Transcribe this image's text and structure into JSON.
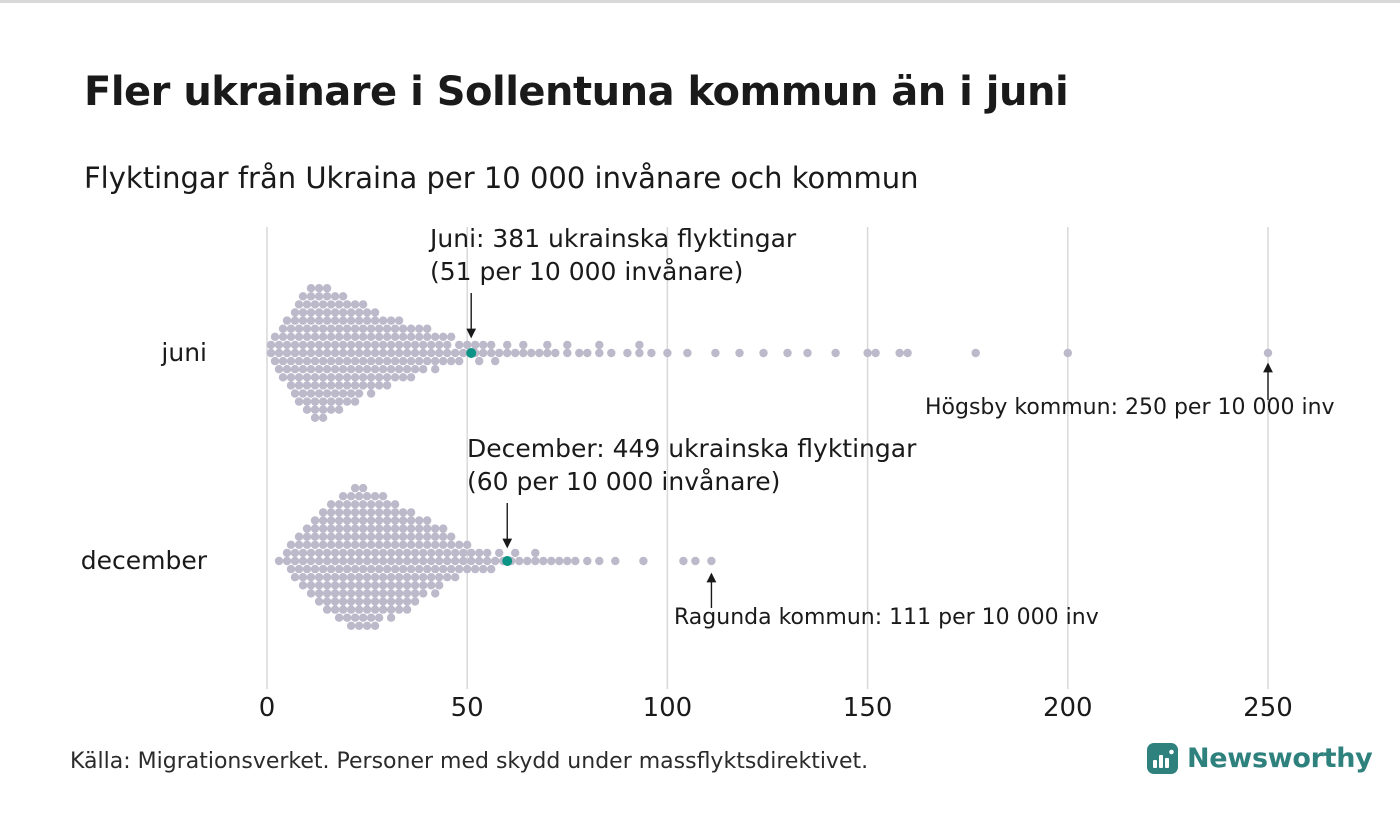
{
  "header": {
    "title": "Fler ukrainare i Sollentuna kommun än i juni",
    "subtitle": "Flyktingar från Ukraina per 10 000 invånare och kommun"
  },
  "chart_data": {
    "type": "beeswarm",
    "unit": "flyktingar per 10 000 invånare",
    "x_axis": {
      "ticks": [
        0,
        50,
        100,
        150,
        200,
        250
      ],
      "min": 0,
      "max": 250,
      "grid": true
    },
    "series": [
      {
        "label": "juni",
        "highlight": {
          "kommun": "Sollentuna",
          "value": 51
        },
        "values_rle": [
          [
            1,
            2
          ],
          [
            2,
            2
          ],
          [
            3,
            3
          ],
          [
            4,
            4
          ],
          [
            5,
            4
          ],
          [
            6,
            5
          ],
          [
            7,
            6
          ],
          [
            8,
            7
          ],
          [
            9,
            7
          ],
          [
            10,
            8
          ],
          [
            11,
            8
          ],
          [
            12,
            9
          ],
          [
            13,
            8
          ],
          [
            14,
            9
          ],
          [
            15,
            8
          ],
          [
            16,
            8
          ],
          [
            17,
            7
          ],
          [
            18,
            8
          ],
          [
            19,
            7
          ],
          [
            20,
            7
          ],
          [
            21,
            6
          ],
          [
            22,
            7
          ],
          [
            23,
            6
          ],
          [
            24,
            6
          ],
          [
            25,
            5
          ],
          [
            26,
            6
          ],
          [
            27,
            5
          ],
          [
            28,
            5
          ],
          [
            29,
            4
          ],
          [
            30,
            5
          ],
          [
            31,
            4
          ],
          [
            32,
            4
          ],
          [
            33,
            4
          ],
          [
            34,
            4
          ],
          [
            35,
            3
          ],
          [
            36,
            4
          ],
          [
            37,
            3
          ],
          [
            38,
            3
          ],
          [
            39,
            3
          ],
          [
            40,
            3
          ],
          [
            41,
            2
          ],
          [
            42,
            3
          ],
          [
            43,
            2
          ],
          [
            44,
            2
          ],
          [
            45,
            2
          ],
          [
            46,
            2
          ],
          [
            47,
            1
          ],
          [
            48,
            2
          ],
          [
            49,
            1
          ],
          [
            50,
            1
          ],
          [
            52,
            2
          ],
          [
            53,
            1
          ],
          [
            54,
            2
          ],
          [
            56,
            2
          ],
          [
            57,
            1
          ],
          [
            58,
            1
          ],
          [
            60,
            2
          ],
          [
            62,
            1
          ],
          [
            64,
            2
          ],
          [
            66,
            1
          ],
          [
            68,
            1
          ],
          [
            70,
            2
          ],
          [
            72,
            1
          ],
          [
            75,
            2
          ],
          [
            78,
            1
          ],
          [
            80,
            1
          ],
          [
            83,
            2
          ],
          [
            86,
            1
          ],
          [
            90,
            1
          ],
          [
            93,
            2
          ],
          [
            96,
            1
          ],
          [
            100,
            1
          ],
          [
            105,
            1
          ],
          [
            112,
            1
          ],
          [
            118,
            1
          ],
          [
            124,
            1
          ],
          [
            130,
            1
          ],
          [
            135,
            1
          ],
          [
            142,
            1
          ],
          [
            150,
            1
          ],
          [
            152,
            1
          ],
          [
            158,
            1
          ],
          [
            160,
            1
          ],
          [
            177,
            1
          ],
          [
            200,
            1
          ],
          [
            250,
            1
          ]
        ]
      },
      {
        "label": "december",
        "highlight": {
          "kommun": "Sollentuna",
          "value": 60
        },
        "values_rle": [
          [
            3,
            1
          ],
          [
            5,
            2
          ],
          [
            6,
            2
          ],
          [
            7,
            3
          ],
          [
            8,
            3
          ],
          [
            9,
            4
          ],
          [
            10,
            4
          ],
          [
            11,
            5
          ],
          [
            12,
            5
          ],
          [
            13,
            6
          ],
          [
            14,
            6
          ],
          [
            15,
            7
          ],
          [
            16,
            7
          ],
          [
            17,
            7
          ],
          [
            18,
            8
          ],
          [
            19,
            8
          ],
          [
            20,
            8
          ],
          [
            21,
            9
          ],
          [
            22,
            9
          ],
          [
            23,
            9
          ],
          [
            24,
            9
          ],
          [
            25,
            9
          ],
          [
            26,
            8
          ],
          [
            27,
            9
          ],
          [
            28,
            8
          ],
          [
            29,
            8
          ],
          [
            30,
            7
          ],
          [
            31,
            8
          ],
          [
            32,
            7
          ],
          [
            33,
            7
          ],
          [
            34,
            6
          ],
          [
            35,
            7
          ],
          [
            36,
            6
          ],
          [
            37,
            6
          ],
          [
            38,
            5
          ],
          [
            39,
            5
          ],
          [
            40,
            5
          ],
          [
            41,
            4
          ],
          [
            42,
            5
          ],
          [
            43,
            4
          ],
          [
            44,
            4
          ],
          [
            45,
            3
          ],
          [
            46,
            3
          ],
          [
            47,
            3
          ],
          [
            48,
            2
          ],
          [
            49,
            2
          ],
          [
            50,
            2
          ],
          [
            51,
            2
          ],
          [
            52,
            1
          ],
          [
            53,
            2
          ],
          [
            54,
            1
          ],
          [
            55,
            2
          ],
          [
            56,
            1
          ],
          [
            57,
            1
          ],
          [
            58,
            1
          ],
          [
            59,
            1
          ],
          [
            61,
            1
          ],
          [
            62,
            1
          ],
          [
            63,
            1
          ],
          [
            65,
            1
          ],
          [
            67,
            2
          ],
          [
            69,
            1
          ],
          [
            71,
            1
          ],
          [
            73,
            1
          ],
          [
            75,
            1
          ],
          [
            77,
            1
          ],
          [
            80,
            1
          ],
          [
            83,
            1
          ],
          [
            87,
            1
          ],
          [
            94,
            1
          ],
          [
            104,
            1
          ],
          [
            107,
            1
          ],
          [
            111,
            1
          ]
        ]
      }
    ],
    "annotations": {
      "juni": {
        "line1": "Juni: 381 ukrainska flyktingar",
        "line2": "(51 per 10 000 invånare)",
        "value": 51
      },
      "december": {
        "line1": "December: 449 ukrainska flyktingar",
        "line2": "(60 per 10 000 invånare)",
        "value": 60
      },
      "hogsby": {
        "text": "Högsby kommun: 250 per 10 000 inv",
        "value": 250
      },
      "ragunda": {
        "text": "Ragunda kommun: 111 per 10 000 inv",
        "value": 111
      }
    }
  },
  "footer": {
    "source": "Källa: Migrationsverket. Personer med skydd under massflyktsdirektivet.",
    "brand": "Newsworthy"
  },
  "colors": {
    "dot": "#bcb9ca",
    "highlight": "#0e9486",
    "brand": "#2f817d",
    "gridline": "#d8d8d8",
    "arrow": "#1a1a1a"
  }
}
